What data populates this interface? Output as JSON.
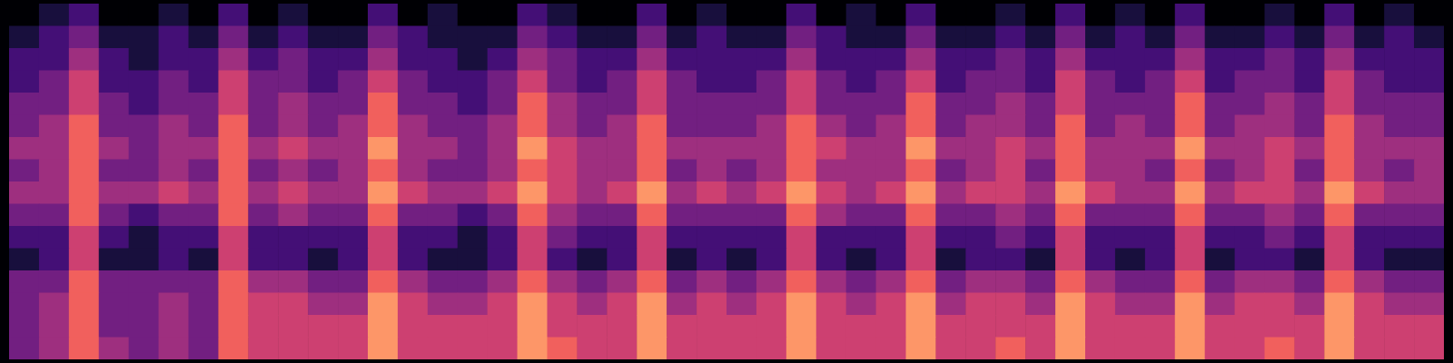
{
  "chart_data": {
    "type": "heatmap",
    "color": "magma",
    "tick_labels": false,
    "zlim": [
      0,
      9
    ],
    "cells": [
      [
        0,
        1,
        2,
        0,
        0,
        1,
        0,
        2,
        0,
        1,
        0,
        0,
        2,
        0,
        1,
        0,
        0,
        2,
        1,
        0,
        0,
        2,
        0,
        1,
        0,
        0,
        2,
        0,
        1,
        0,
        2,
        0,
        0,
        1,
        0,
        2,
        0,
        1,
        0,
        2,
        0,
        0,
        1,
        0,
        2,
        0,
        1,
        0
      ],
      [
        1,
        2,
        3,
        1,
        1,
        2,
        1,
        3,
        1,
        2,
        1,
        1,
        3,
        2,
        1,
        1,
        1,
        3,
        2,
        1,
        1,
        3,
        1,
        2,
        1,
        1,
        3,
        2,
        1,
        1,
        3,
        1,
        1,
        2,
        1,
        3,
        1,
        2,
        1,
        3,
        1,
        1,
        2,
        1,
        3,
        1,
        2,
        1
      ],
      [
        2,
        2,
        4,
        2,
        1,
        2,
        2,
        4,
        2,
        3,
        2,
        2,
        4,
        2,
        2,
        1,
        2,
        4,
        3,
        2,
        2,
        4,
        2,
        2,
        2,
        2,
        4,
        2,
        2,
        2,
        4,
        2,
        2,
        3,
        2,
        4,
        2,
        2,
        2,
        4,
        2,
        2,
        3,
        2,
        4,
        2,
        2,
        2
      ],
      [
        2,
        3,
        5,
        2,
        2,
        3,
        2,
        5,
        3,
        3,
        2,
        3,
        5,
        3,
        2,
        2,
        3,
        5,
        3,
        2,
        3,
        5,
        3,
        2,
        2,
        3,
        5,
        3,
        2,
        3,
        5,
        2,
        3,
        3,
        2,
        5,
        3,
        2,
        3,
        5,
        2,
        3,
        3,
        2,
        5,
        3,
        2,
        2
      ],
      [
        3,
        3,
        5,
        3,
        2,
        3,
        3,
        5,
        3,
        4,
        3,
        3,
        6,
        3,
        3,
        2,
        3,
        6,
        4,
        3,
        3,
        5,
        3,
        3,
        3,
        3,
        5,
        3,
        3,
        3,
        6,
        3,
        3,
        4,
        3,
        5,
        3,
        3,
        3,
        6,
        3,
        3,
        4,
        3,
        5,
        3,
        3,
        3
      ],
      [
        3,
        4,
        6,
        3,
        3,
        4,
        3,
        6,
        3,
        4,
        3,
        4,
        6,
        4,
        3,
        3,
        4,
        6,
        4,
        3,
        4,
        6,
        3,
        3,
        3,
        4,
        6,
        4,
        3,
        4,
        6,
        3,
        4,
        4,
        3,
        6,
        3,
        4,
        3,
        6,
        3,
        4,
        4,
        3,
        6,
        4,
        3,
        3
      ],
      [
        4,
        4,
        6,
        4,
        3,
        4,
        4,
        6,
        4,
        5,
        4,
        4,
        7,
        4,
        4,
        3,
        4,
        7,
        5,
        4,
        4,
        6,
        4,
        4,
        4,
        4,
        6,
        5,
        4,
        4,
        7,
        4,
        4,
        5,
        4,
        6,
        4,
        4,
        4,
        7,
        4,
        4,
        5,
        4,
        6,
        4,
        4,
        4
      ],
      [
        3,
        4,
        6,
        3,
        3,
        4,
        3,
        6,
        3,
        4,
        3,
        4,
        6,
        4,
        3,
        3,
        4,
        6,
        5,
        4,
        4,
        6,
        3,
        4,
        3,
        4,
        6,
        4,
        4,
        4,
        6,
        3,
        4,
        5,
        3,
        6,
        4,
        4,
        3,
        6,
        3,
        4,
        5,
        3,
        6,
        4,
        3,
        4
      ],
      [
        4,
        4,
        6,
        4,
        4,
        5,
        4,
        6,
        4,
        5,
        4,
        4,
        7,
        5,
        4,
        4,
        5,
        7,
        5,
        4,
        5,
        7,
        4,
        5,
        4,
        5,
        7,
        5,
        4,
        5,
        7,
        4,
        5,
        5,
        4,
        7,
        5,
        4,
        4,
        7,
        4,
        5,
        5,
        4,
        7,
        5,
        4,
        4
      ],
      [
        3,
        3,
        6,
        3,
        2,
        3,
        3,
        6,
        3,
        4,
        3,
        3,
        6,
        3,
        3,
        2,
        3,
        6,
        4,
        3,
        3,
        6,
        3,
        3,
        3,
        3,
        6,
        4,
        3,
        3,
        6,
        3,
        3,
        4,
        3,
        6,
        3,
        3,
        3,
        6,
        3,
        3,
        4,
        3,
        6,
        3,
        3,
        3
      ],
      [
        2,
        2,
        5,
        2,
        1,
        2,
        2,
        5,
        2,
        2,
        2,
        2,
        5,
        2,
        2,
        1,
        2,
        5,
        3,
        2,
        2,
        5,
        2,
        2,
        2,
        2,
        5,
        2,
        2,
        2,
        5,
        2,
        2,
        3,
        2,
        5,
        2,
        2,
        2,
        5,
        2,
        2,
        3,
        2,
        5,
        2,
        2,
        2
      ],
      [
        1,
        2,
        5,
        1,
        1,
        2,
        1,
        5,
        2,
        2,
        1,
        2,
        5,
        2,
        1,
        1,
        2,
        5,
        2,
        1,
        2,
        5,
        1,
        2,
        1,
        2,
        5,
        2,
        1,
        2,
        5,
        1,
        2,
        2,
        1,
        5,
        2,
        1,
        2,
        5,
        1,
        2,
        2,
        1,
        5,
        2,
        1,
        1
      ],
      [
        3,
        3,
        6,
        3,
        3,
        3,
        3,
        6,
        4,
        4,
        3,
        3,
        6,
        4,
        3,
        3,
        4,
        6,
        4,
        3,
        4,
        6,
        3,
        4,
        3,
        4,
        6,
        4,
        3,
        4,
        6,
        3,
        4,
        4,
        3,
        6,
        4,
        3,
        3,
        6,
        3,
        4,
        4,
        3,
        6,
        4,
        3,
        3
      ],
      [
        3,
        4,
        6,
        3,
        3,
        4,
        3,
        6,
        5,
        5,
        4,
        4,
        7,
        5,
        4,
        4,
        5,
        7,
        5,
        4,
        5,
        7,
        4,
        5,
        4,
        5,
        7,
        5,
        4,
        5,
        7,
        4,
        5,
        5,
        4,
        7,
        5,
        4,
        4,
        7,
        4,
        5,
        5,
        4,
        7,
        5,
        4,
        4
      ],
      [
        3,
        4,
        6,
        3,
        3,
        4,
        3,
        6,
        5,
        5,
        5,
        5,
        7,
        5,
        5,
        5,
        5,
        7,
        5,
        5,
        5,
        7,
        5,
        5,
        5,
        5,
        7,
        5,
        5,
        5,
        7,
        5,
        5,
        5,
        5,
        7,
        5,
        5,
        5,
        7,
        5,
        5,
        5,
        5,
        7,
        5,
        5,
        5
      ],
      [
        3,
        4,
        6,
        4,
        3,
        4,
        3,
        6,
        5,
        5,
        5,
        5,
        7,
        5,
        5,
        5,
        5,
        7,
        6,
        5,
        5,
        7,
        5,
        5,
        5,
        5,
        7,
        5,
        5,
        5,
        7,
        5,
        5,
        6,
        5,
        7,
        5,
        5,
        5,
        7,
        5,
        5,
        6,
        5,
        7,
        5,
        5,
        5
      ]
    ]
  }
}
